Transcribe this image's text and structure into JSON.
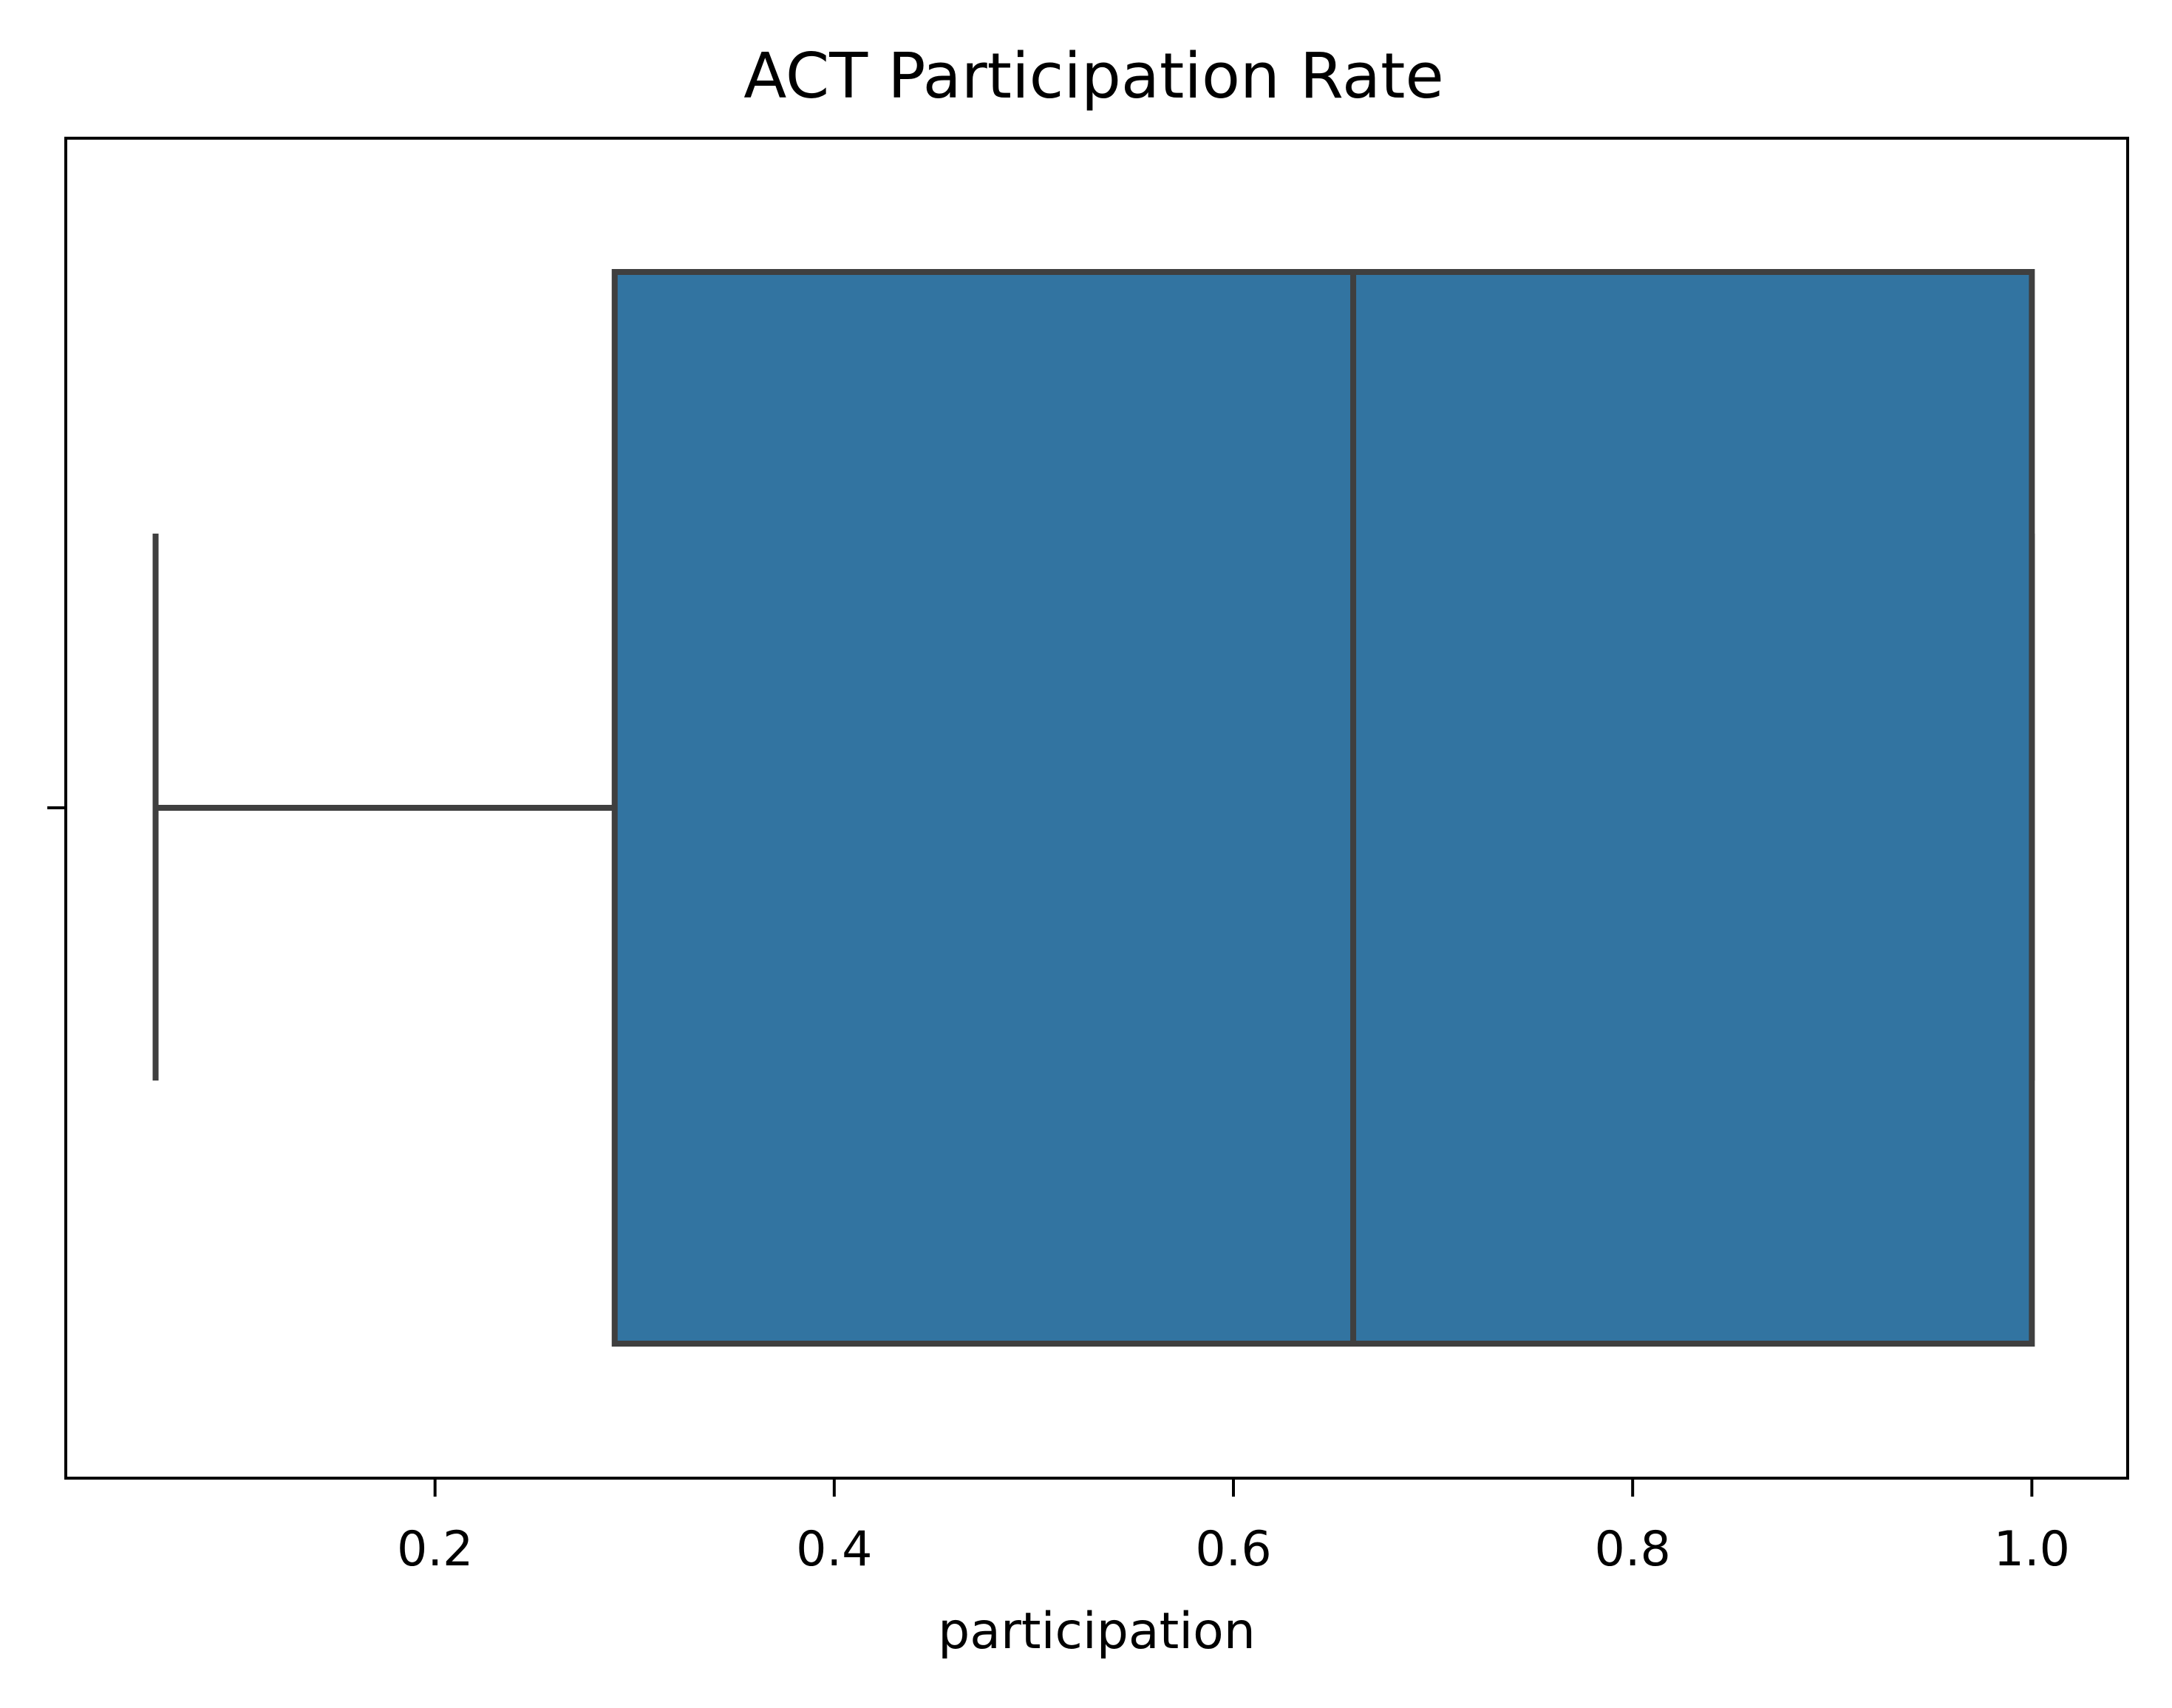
{
  "chart_data": {
    "type": "box",
    "title": "ACT Participation Rate",
    "xlabel": "participation",
    "ylabel": "",
    "xlim": [
      0.015,
      1.048
    ],
    "x_ticks": [
      0.2,
      0.4,
      0.6,
      0.8,
      1.0
    ],
    "x_tick_labels": [
      "0.2",
      "0.4",
      "0.6",
      "0.8",
      "1.0"
    ],
    "orientation": "horizontal",
    "grid": false,
    "box": {
      "whisker_low": 0.06,
      "q1": 0.29,
      "median": 0.66,
      "q3": 1.0,
      "whisker_high": 1.0
    },
    "colors": {
      "box_fill": "#3274a1",
      "box_edge": "#3f3f3f",
      "axes": "#000000"
    }
  }
}
